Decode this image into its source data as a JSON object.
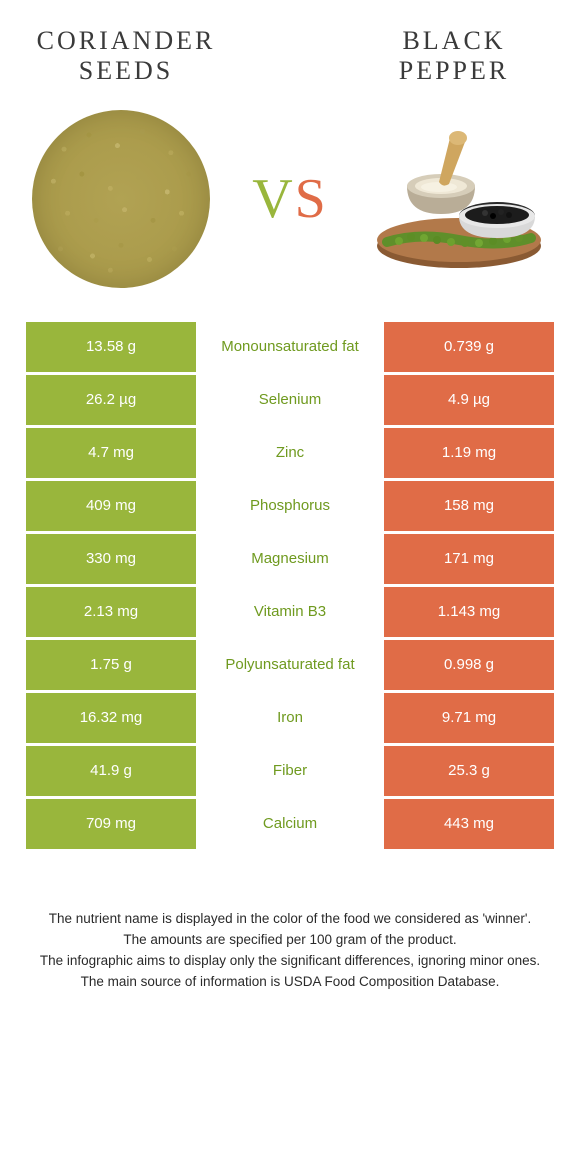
{
  "colors": {
    "left": "#99b63c",
    "right": "#e06c47",
    "green_text": "#6f9a1f",
    "orange_text": "#d25b38",
    "title_text": "#3a3a3a",
    "footer_text": "#2a2a2a",
    "background": "#ffffff"
  },
  "left_food": {
    "title": "Coriander seeds"
  },
  "right_food": {
    "title": "Black pepper"
  },
  "vs": "VS",
  "rows": [
    {
      "nutrient": "Monounsaturated fat",
      "left": "13.58 g",
      "right": "0.739 g",
      "winner": "left"
    },
    {
      "nutrient": "Selenium",
      "left": "26.2 µg",
      "right": "4.9 µg",
      "winner": "left"
    },
    {
      "nutrient": "Zinc",
      "left": "4.7 mg",
      "right": "1.19 mg",
      "winner": "left"
    },
    {
      "nutrient": "Phosphorus",
      "left": "409 mg",
      "right": "158 mg",
      "winner": "left"
    },
    {
      "nutrient": "Magnesium",
      "left": "330 mg",
      "right": "171 mg",
      "winner": "left"
    },
    {
      "nutrient": "Vitamin B3",
      "left": "2.13 mg",
      "right": "1.143 mg",
      "winner": "left"
    },
    {
      "nutrient": "Polyunsaturated fat",
      "left": "1.75 g",
      "right": "0.998 g",
      "winner": "left"
    },
    {
      "nutrient": "Iron",
      "left": "16.32 mg",
      "right": "9.71 mg",
      "winner": "left"
    },
    {
      "nutrient": "Fiber",
      "left": "41.9 g",
      "right": "25.3 g",
      "winner": "left"
    },
    {
      "nutrient": "Calcium",
      "left": "709 mg",
      "right": "443 mg",
      "winner": "left"
    }
  ],
  "footer_lines": [
    "The nutrient name is displayed in the color of the food we considered as 'winner'.",
    "The amounts are specified per 100 gram of the product.",
    "The infographic aims to display only the significant differences, ignoring minor ones.",
    "The main source of information is USDA Food Composition Database."
  ]
}
